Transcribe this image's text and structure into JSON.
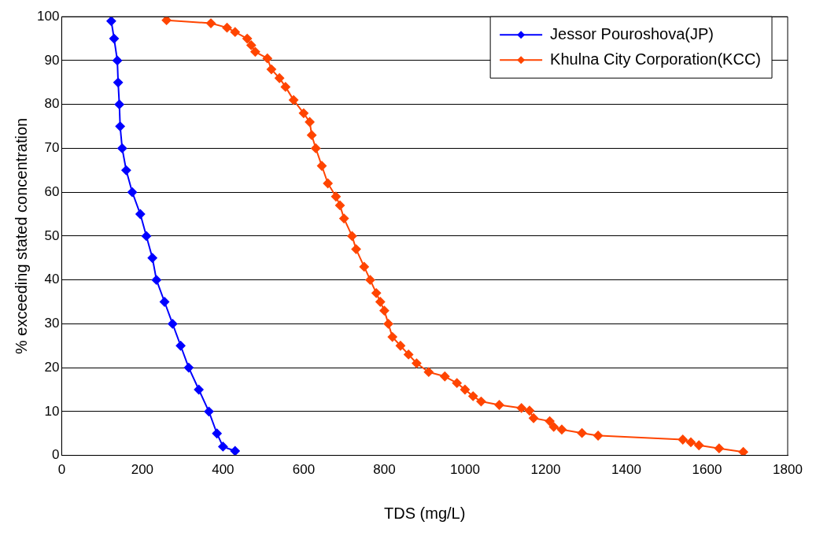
{
  "chart_data": {
    "type": "line",
    "xlabel": "TDS (mg/L)",
    "ylabel": "% exceeding stated concentration",
    "xlim": [
      0,
      1800
    ],
    "xticks": [
      0,
      200,
      400,
      600,
      800,
      1000,
      1200,
      1400,
      1600,
      1800
    ],
    "ylim": [
      0,
      100
    ],
    "yticks": [
      0,
      10,
      20,
      30,
      40,
      50,
      60,
      70,
      80,
      90,
      100
    ],
    "grid": "y",
    "legend": "top right",
    "marker": "diamond",
    "line_style": "solid",
    "series": [
      {
        "name": "Jessor Pouroshova(JP)",
        "color": "#0000ff",
        "x": [
          123,
          130,
          138,
          140,
          143,
          145,
          150,
          160,
          175,
          195,
          210,
          225,
          235,
          255,
          275,
          295,
          315,
          340,
          365,
          385,
          400,
          430
        ],
        "values": [
          99,
          95,
          90,
          85,
          80,
          75,
          70,
          65,
          60,
          55,
          50,
          45,
          40,
          35,
          30,
          25,
          20,
          15,
          10,
          5,
          2,
          1
        ]
      },
      {
        "name": "Khulna City Corporation(KCC)",
        "color": "#ff4500",
        "x": [
          260,
          370,
          410,
          430,
          460,
          470,
          480,
          510,
          520,
          540,
          555,
          575,
          600,
          615,
          620,
          630,
          645,
          660,
          680,
          690,
          700,
          720,
          730,
          750,
          765,
          780,
          790,
          800,
          810,
          820,
          840,
          860,
          880,
          910,
          950,
          980,
          1000,
          1020,
          1040,
          1085,
          1140,
          1160,
          1170,
          1210,
          1220,
          1240,
          1290,
          1330,
          1540,
          1560,
          1580,
          1630,
          1690
        ],
        "values": [
          99.2,
          98.5,
          97.5,
          96.5,
          95,
          93.5,
          92,
          90.5,
          88,
          86,
          84,
          81,
          78,
          76,
          73,
          70,
          66,
          62,
          59,
          57,
          54,
          50,
          47,
          43,
          40,
          37,
          35,
          33,
          30,
          27,
          25,
          23,
          21,
          19,
          18,
          16.5,
          15,
          13.5,
          12.3,
          11.5,
          10.8,
          10.2,
          8.5,
          7.8,
          6.5,
          5.9,
          5.1,
          4.5,
          3.6,
          3,
          2.3,
          1.6,
          0.8
        ]
      }
    ]
  }
}
